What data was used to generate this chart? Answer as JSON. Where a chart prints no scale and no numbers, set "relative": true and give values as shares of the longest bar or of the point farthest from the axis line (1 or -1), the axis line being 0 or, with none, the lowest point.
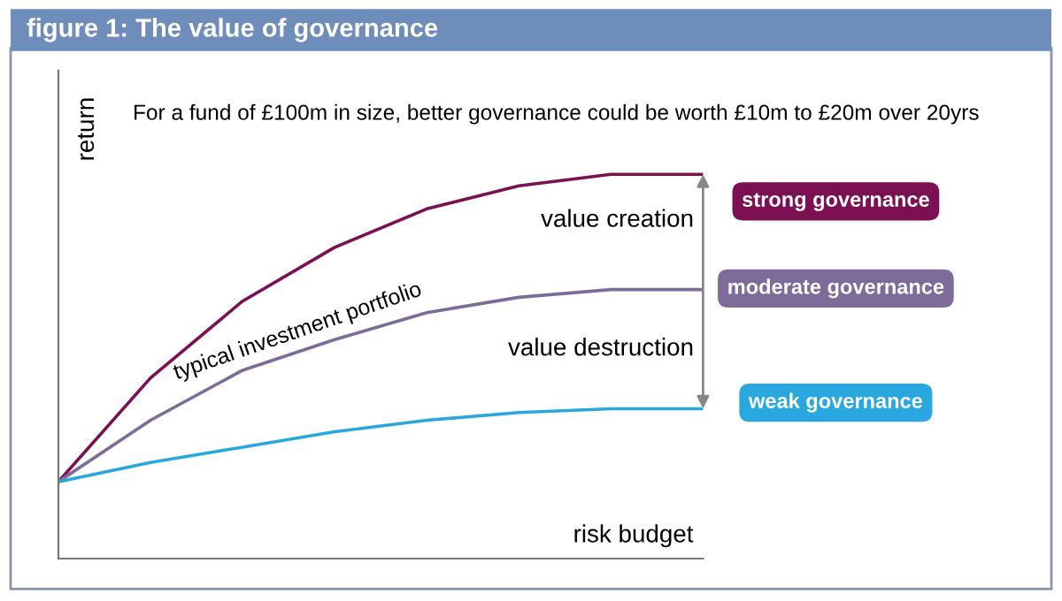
{
  "chart_data": {
    "type": "line",
    "title": "figure 1: The value of governance",
    "subtitle": "For a fund of £100m in size, better governance could be worth £10m to £20m over 20yrs",
    "xlabel": "risk budget",
    "ylabel": "return",
    "relative": true,
    "categories": [
      null,
      null,
      null,
      null,
      null,
      null,
      null,
      null
    ],
    "series": [
      {
        "name": "strong governance",
        "color": "#7b1052",
        "values": [
          0.2,
          0.47,
          0.67,
          0.81,
          0.91,
          0.97,
          1.0,
          1.0
        ]
      },
      {
        "name": "moderate governance",
        "color": "#7d6b99",
        "values": [
          0.2,
          0.36,
          0.49,
          0.57,
          0.64,
          0.68,
          0.7,
          0.7
        ]
      },
      {
        "name": "weak governance",
        "color": "#2aa7df",
        "values": [
          0.2,
          0.25,
          0.29,
          0.33,
          0.36,
          0.38,
          0.39,
          0.39
        ]
      }
    ],
    "annotations": [
      "value creation",
      "value destruction",
      "typical investment portfolio"
    ],
    "legend": "right",
    "marker": "none",
    "line_style": "solid"
  }
}
